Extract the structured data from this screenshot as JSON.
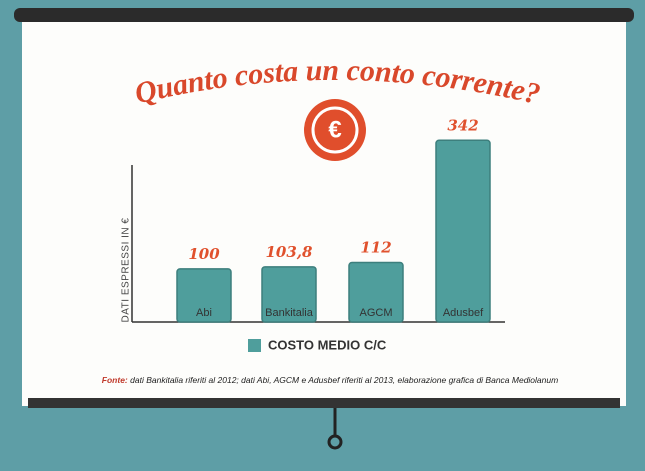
{
  "chart_data": {
    "type": "bar",
    "title": "Quanto costa un conto corrente?",
    "badge": "€",
    "y_label": "DATI ESPRESSI IN €",
    "categories": [
      "Abi",
      "Bankitalia",
      "AGCM",
      "Adusbef"
    ],
    "series": [
      {
        "name": "COSTO MEDIO C/C",
        "color": "#4f9e9c",
        "values": [
          100,
          103.8,
          112,
          342
        ],
        "value_labels": [
          "100",
          "103,8",
          "112",
          "342"
        ]
      }
    ],
    "ylim": [
      0,
      350
    ],
    "source_label": "Fonte:",
    "source": "dati Bankitalia riferiti al 2012; dati Abi, AGCM e Adusbef riferiti al 2013, elaborazione grafica di Banca Mediolanum"
  }
}
